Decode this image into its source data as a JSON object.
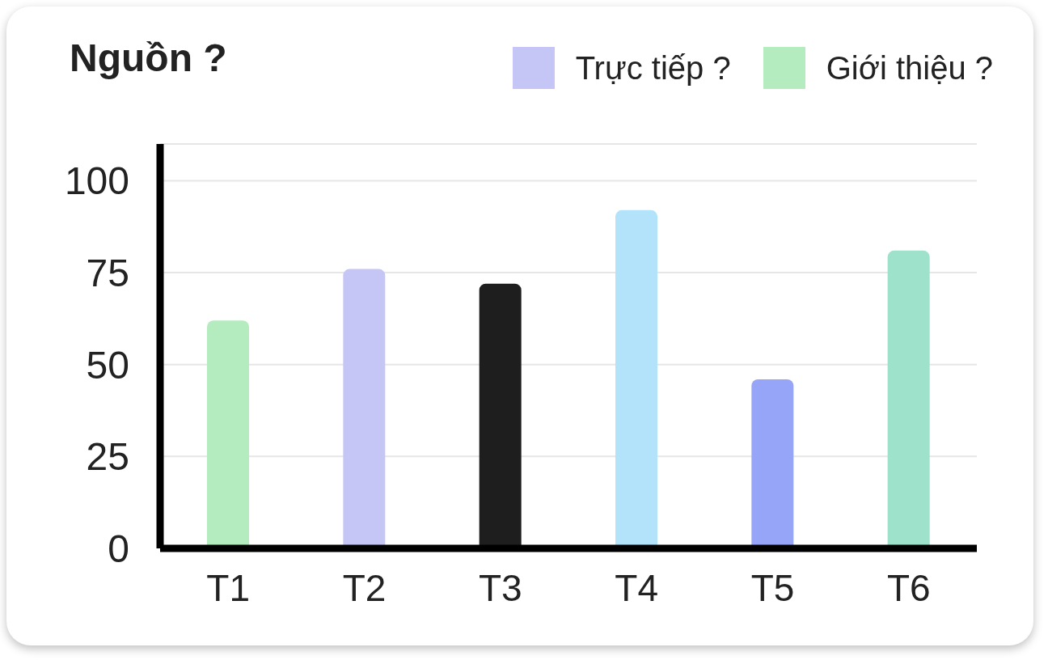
{
  "chart_data": {
    "type": "bar",
    "title": "Nguồn ?",
    "categories": [
      "T1",
      "T2",
      "T3",
      "T4",
      "T5",
      "T6"
    ],
    "series": [
      {
        "name": "Trực tiếp ?",
        "color": "#c6c6f6",
        "values": [
          null,
          76,
          null,
          null,
          null,
          null
        ]
      },
      {
        "name": "Giới thiệu ?",
        "color": "#b4ecbf",
        "values": [
          62,
          null,
          null,
          null,
          null,
          null
        ]
      },
      {
        "colors": [
          "#b4ecbf",
          "#c6c6f6",
          "#1e1e1e",
          "#b3e3fb",
          "#96a5f8",
          "#9ee2cb"
        ],
        "values": [
          null,
          null,
          72,
          92,
          46,
          81
        ]
      }
    ],
    "stacked": true,
    "ylim": [
      0,
      110
    ],
    "yticks": [
      0,
      25,
      50,
      75,
      100
    ],
    "grid": "y",
    "legend": "top right"
  }
}
